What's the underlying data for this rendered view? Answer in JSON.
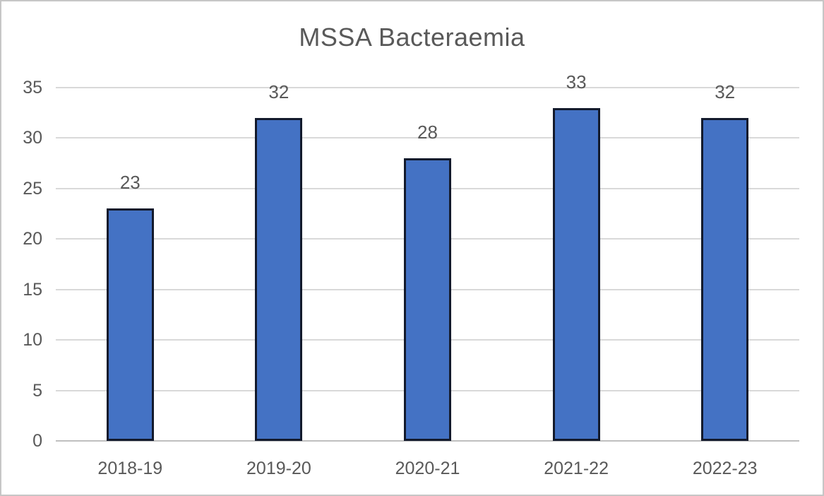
{
  "chart_data": {
    "type": "bar",
    "title": "MSSA Bacteraemia",
    "categories": [
      "2018-19",
      "2019-20",
      "2020-21",
      "2021-22",
      "2022-23"
    ],
    "values": [
      23,
      32,
      28,
      33,
      32
    ],
    "data_labels": [
      23,
      32,
      28,
      33,
      32
    ],
    "xlabel": "",
    "ylabel": "",
    "ylim": [
      0,
      35
    ],
    "yticks": [
      0,
      5,
      10,
      15,
      20,
      25,
      30,
      35
    ],
    "grid": true,
    "legend": "none",
    "colors": {
      "bar_fill": "#4472C4",
      "bar_border": "#131A2C",
      "gridline": "#D9D9D9",
      "axis_line": "#BFBFBF",
      "text": "#595959",
      "background": "#FFFFFF",
      "frame_border": "#C6C6C6"
    }
  }
}
